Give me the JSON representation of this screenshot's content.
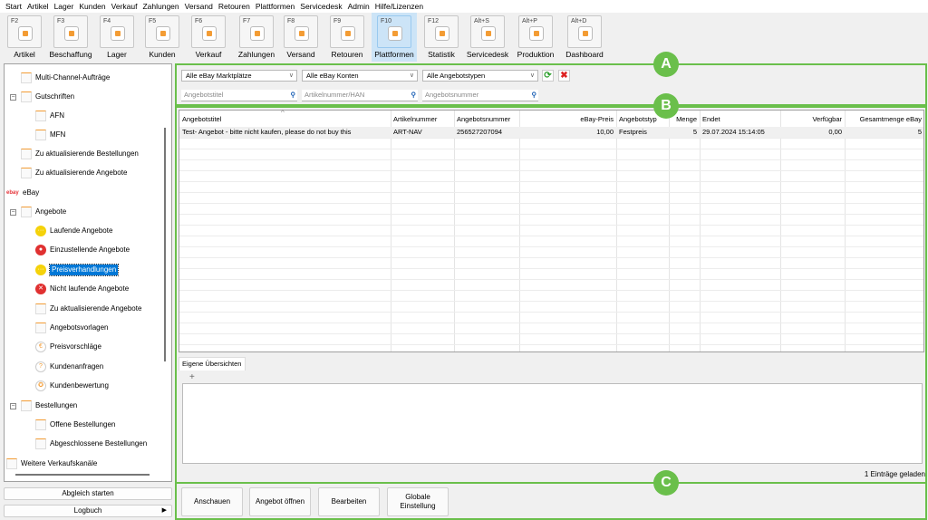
{
  "menu": [
    "Start",
    "Artikel",
    "Lager",
    "Kunden",
    "Verkauf",
    "Zahlungen",
    "Versand",
    "Retouren",
    "Plattformen",
    "Servicedesk",
    "Admin",
    "Hilfe/Lizenzen"
  ],
  "toolbar": [
    {
      "key": "F2",
      "label": "Artikel"
    },
    {
      "key": "F3",
      "label": "Beschaffung"
    },
    {
      "key": "F4",
      "label": "Lager"
    },
    {
      "key": "F5",
      "label": "Kunden"
    },
    {
      "key": "F6",
      "label": "Verkauf"
    },
    {
      "key": "F7",
      "label": "Zahlungen"
    },
    {
      "key": "F8",
      "label": "Versand"
    },
    {
      "key": "F9",
      "label": "Retouren"
    },
    {
      "key": "F10",
      "label": "Plattformen",
      "active": true
    },
    {
      "key": "F12",
      "label": "Statistik"
    },
    {
      "key": "Alt+S",
      "label": "Servicedesk"
    },
    {
      "key": "Alt+P",
      "label": "Produktion"
    },
    {
      "key": "Alt+D",
      "label": "Dashboard"
    }
  ],
  "tree": [
    {
      "label": "Multi-Channel-Aufträge",
      "level": 1
    },
    {
      "label": "Gutschriften",
      "level": 1,
      "expander": "⊟"
    },
    {
      "label": "AFN",
      "level": 2
    },
    {
      "label": "MFN",
      "level": 2
    },
    {
      "label": "Zu aktualisierende Bestellungen",
      "level": 1
    },
    {
      "label": "Zu aktualisierende Angebote",
      "level": 1
    },
    {
      "label": "eBay",
      "level": 0,
      "logo": "ebay"
    },
    {
      "label": "Angebote",
      "level": 1,
      "expander": "⊟"
    },
    {
      "label": "Laufende Angebote",
      "level": 2,
      "icon": "yellow-dots"
    },
    {
      "label": "Einzustellende Angebote",
      "level": 2,
      "icon": "red-ring"
    },
    {
      "label": "Preisverhandlungen",
      "level": 2,
      "icon": "yellow-dots",
      "selected": true
    },
    {
      "label": "Nicht laufende Angebote",
      "level": 2,
      "icon": "red-x"
    },
    {
      "label": "Zu aktualisierende Angebote",
      "level": 2
    },
    {
      "label": "Angebotsvorlagen",
      "level": 2
    },
    {
      "label": "Preisvorschläge",
      "level": 2,
      "icon": "euro"
    },
    {
      "label": "Kundenanfragen",
      "level": 2,
      "icon": "question"
    },
    {
      "label": "Kundenbewertung",
      "level": 2,
      "icon": "star"
    },
    {
      "label": "Bestellungen",
      "level": 1,
      "expander": "⊟"
    },
    {
      "label": "Offene Bestellungen",
      "level": 2
    },
    {
      "label": "Abgeschlossene Bestellungen",
      "level": 2
    },
    {
      "label": "Weitere Verkaufskanäle",
      "level": 0
    }
  ],
  "left_buttons": {
    "sync": "Abgleich starten",
    "log": "Logbuch"
  },
  "filters": {
    "marketplace": "Alle eBay Marktplätze",
    "accounts": "Alle eBay Konten",
    "types": "Alle Angebotstypen",
    "search_title": "Angebotstitel",
    "search_sku": "Artikelnummer/HAN",
    "search_offer": "Angebotsnummer"
  },
  "badges": {
    "a": "A",
    "b": "B",
    "c": "C"
  },
  "colors": {
    "accent": "#6abf4b",
    "selection": "#0078d7"
  },
  "table": {
    "columns": [
      "Angebotstitel",
      "Artikelnummer",
      "Angebotsnummer",
      "eBay-Preis",
      "Angebotstyp",
      "Menge",
      "Endet",
      "Verfügbar",
      "Gesamtmenge eBay"
    ],
    "rows": [
      [
        "Test- Angebot - bitte nicht kaufen, please do not buy this",
        "ART-NAV",
        "256527207094",
        "10,00",
        "Festpreis",
        "5",
        "29.07.2024 15:14:05",
        "0,00",
        "5"
      ]
    ]
  },
  "overview": {
    "tab": "Eigene Übersichten",
    "add": "+"
  },
  "status": "1 Einträge geladen",
  "actions": [
    "Anschauen",
    "Angebot öffnen",
    "Bearbeiten",
    "Globale Einstellung"
  ]
}
